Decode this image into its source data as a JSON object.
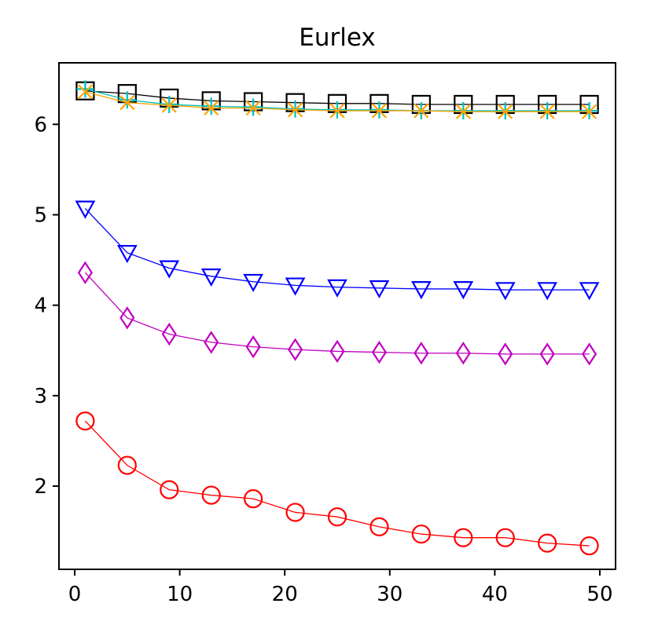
{
  "chart_data": {
    "type": "line",
    "title": "Eurlex",
    "xlabel": "",
    "ylabel": "",
    "xlim": [
      -1.5,
      51.5
    ],
    "ylim": [
      1.08,
      6.68
    ],
    "xticks": [
      0,
      10,
      20,
      30,
      40,
      50
    ],
    "yticks": [
      2,
      3,
      4,
      5,
      6
    ],
    "grid": false,
    "x": [
      1,
      5,
      9,
      13,
      17,
      21,
      25,
      29,
      33,
      37,
      41,
      45,
      49
    ],
    "series": [
      {
        "color": "#000000",
        "marker": "square",
        "values": [
          6.37,
          6.34,
          6.29,
          6.26,
          6.25,
          6.24,
          6.23,
          6.23,
          6.22,
          6.22,
          6.22,
          6.22,
          6.22
        ]
      },
      {
        "color": "#00bfbf",
        "marker": "plus",
        "values": [
          6.39,
          6.27,
          6.22,
          6.2,
          6.19,
          6.17,
          6.16,
          6.16,
          6.15,
          6.15,
          6.15,
          6.15,
          6.15
        ]
      },
      {
        "color": "#ffa500",
        "marker": "x",
        "values": [
          6.36,
          6.24,
          6.21,
          6.18,
          6.18,
          6.16,
          6.15,
          6.15,
          6.15,
          6.14,
          6.14,
          6.14,
          6.14
        ]
      },
      {
        "color": "#0000ff",
        "marker": "triangle-down",
        "values": [
          5.07,
          4.58,
          4.41,
          4.32,
          4.26,
          4.22,
          4.2,
          4.19,
          4.18,
          4.18,
          4.17,
          4.17,
          4.17
        ]
      },
      {
        "color": "#bf00bf",
        "marker": "diamond",
        "values": [
          4.36,
          3.86,
          3.68,
          3.59,
          3.54,
          3.51,
          3.49,
          3.48,
          3.47,
          3.47,
          3.46,
          3.46,
          3.46
        ]
      },
      {
        "color": "#ff0000",
        "marker": "circle",
        "values": [
          2.72,
          2.23,
          1.96,
          1.9,
          1.86,
          1.71,
          1.66,
          1.55,
          1.47,
          1.43,
          1.43,
          1.37,
          1.34
        ]
      }
    ]
  }
}
